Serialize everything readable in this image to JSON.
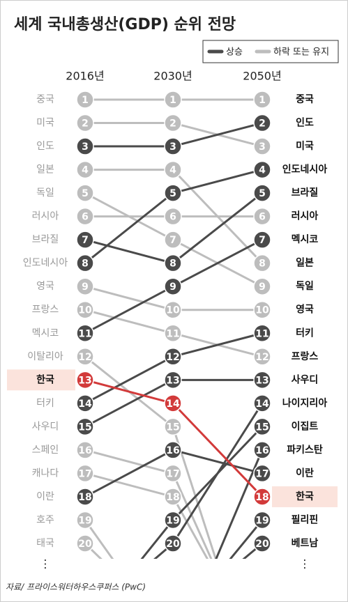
{
  "chart_data": {
    "type": "bump",
    "title": "세계 국내총생산(GDP) 순위 전망",
    "legend": [
      {
        "label": "상승",
        "color": "#4a4a4a"
      },
      {
        "label": "하락 또는 유지",
        "color": "#bdbdbd"
      }
    ],
    "x": [
      "2016년",
      "2030년",
      "2050년"
    ],
    "ylim": [
      1,
      20
    ],
    "series": [
      {
        "name": "중국",
        "color": "#bdbdbd",
        "values": [
          1,
          1,
          1
        ]
      },
      {
        "name": "미국",
        "color": "#bdbdbd",
        "values": [
          2,
          2,
          3
        ]
      },
      {
        "name": "인도",
        "color": "#4a4a4a",
        "values": [
          3,
          3,
          2
        ]
      },
      {
        "name": "일본",
        "color": "#bdbdbd",
        "values": [
          4,
          4,
          8
        ]
      },
      {
        "name": "독일",
        "color": "#bdbdbd",
        "values": [
          5,
          7,
          9
        ]
      },
      {
        "name": "러시아",
        "color": "#bdbdbd",
        "values": [
          6,
          6,
          6
        ]
      },
      {
        "name": "브라질",
        "color": "#4a4a4a",
        "values": [
          7,
          8,
          5
        ]
      },
      {
        "name": "인도네시아",
        "color": "#4a4a4a",
        "values": [
          8,
          5,
          4
        ]
      },
      {
        "name": "영국",
        "color": "#bdbdbd",
        "values": [
          9,
          10,
          10
        ]
      },
      {
        "name": "프랑스",
        "color": "#bdbdbd",
        "values": [
          10,
          11,
          12
        ]
      },
      {
        "name": "멕시코",
        "color": "#4a4a4a",
        "values": [
          11,
          9,
          7
        ]
      },
      {
        "name": "이탈리아",
        "color": "#bdbdbd",
        "values": [
          12,
          15,
          null
        ]
      },
      {
        "name": "한국",
        "color": "#d23a3a",
        "highlight": true,
        "values": [
          13,
          14,
          18
        ]
      },
      {
        "name": "터키",
        "color": "#4a4a4a",
        "values": [
          14,
          12,
          11
        ]
      },
      {
        "name": "사우디",
        "color": "#4a4a4a",
        "values": [
          15,
          13,
          13
        ]
      },
      {
        "name": "스페인",
        "color": "#bdbdbd",
        "values": [
          16,
          17,
          null
        ]
      },
      {
        "name": "캐나다",
        "color": "#bdbdbd",
        "values": [
          17,
          18,
          null
        ]
      },
      {
        "name": "이란",
        "color": "#4a4a4a",
        "values": [
          18,
          16,
          17
        ]
      },
      {
        "name": "호주",
        "color": "#bdbdbd",
        "values": [
          19,
          null,
          null
        ]
      },
      {
        "name": "태국",
        "color": "#bdbdbd",
        "values": [
          20,
          null,
          null
        ]
      },
      {
        "name": "나이지리아",
        "color": "#4a4a4a",
        "values": [
          null,
          20,
          14
        ]
      },
      {
        "name": "이집트",
        "color": "#4a4a4a",
        "values": [
          null,
          19,
          15
        ]
      },
      {
        "name": "파키스탄",
        "color": "#4a4a4a",
        "values": [
          null,
          null,
          16
        ]
      },
      {
        "name": "필리핀",
        "color": "#4a4a4a",
        "values": [
          null,
          null,
          19
        ]
      },
      {
        "name": "베트남",
        "color": "#4a4a4a",
        "values": [
          null,
          null,
          20
        ]
      }
    ],
    "more_left": "⋮",
    "more_right": "⋮",
    "source": "자료/ 프라이스워터하우스쿠퍼스 (PwC)"
  }
}
